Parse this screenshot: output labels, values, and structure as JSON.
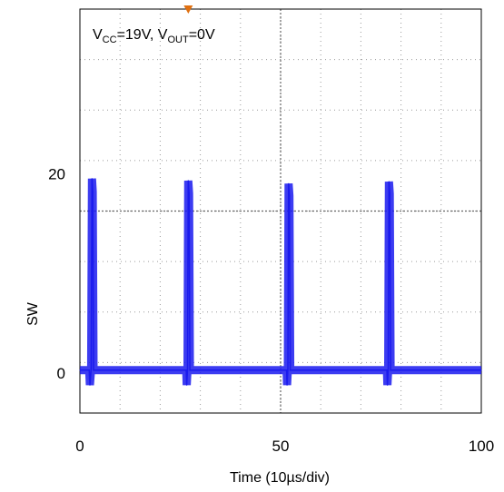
{
  "chart_data": {
    "type": "line",
    "title": "",
    "xlabel": "Time (10µs/div)",
    "ylabel": "SW",
    "annotation": {
      "vcc_main": "V",
      "vcc_sub": "CC",
      "vcc_value": "=19V, ",
      "vout_main": "V",
      "vout_sub": "OUT",
      "vout_value": "=0V"
    },
    "x_ticks": [
      {
        "value": 0,
        "label": "0"
      },
      {
        "value": 50,
        "label": "50"
      },
      {
        "value": 100,
        "label": "100"
      }
    ],
    "y_ticks": [
      {
        "value": 0,
        "label": "0"
      },
      {
        "value": 20,
        "label": "20"
      }
    ],
    "xlim": [
      0,
      100
    ],
    "ylim": [
      -4,
      36.5
    ],
    "grid": true,
    "series": [
      {
        "color": "#1a1aee",
        "x": [
          0,
          2.3,
          2.5,
          2.8,
          3.0,
          3.2,
          3.4,
          26.5,
          26.6,
          26.8,
          27.0,
          27.2,
          27.4,
          51.5,
          51.6,
          51.8,
          52.0,
          52.2,
          52.4,
          76.5,
          76.6,
          76.8,
          77.0,
          77.2,
          77.4,
          100
        ],
        "y": [
          0.3,
          0.3,
          -1.2,
          0.5,
          19.5,
          18.2,
          0.3,
          0.3,
          -1.2,
          0.4,
          19.3,
          18.0,
          0.3,
          0.3,
          -1.2,
          0.4,
          19.0,
          17.8,
          0.3,
          0.3,
          -1.2,
          0.4,
          19.2,
          18.0,
          0.3,
          0.3
        ]
      }
    ],
    "trigger_marker_color": "#e07010"
  }
}
